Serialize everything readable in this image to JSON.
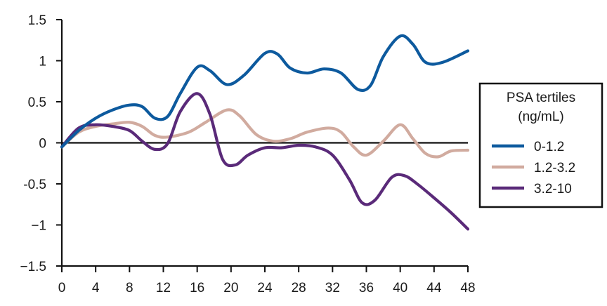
{
  "chart_data": {
    "type": "line",
    "title": "",
    "xlabel": "",
    "ylabel": "",
    "xlim": [
      0,
      48
    ],
    "ylim": [
      -1.5,
      1.5
    ],
    "x_ticks": [
      0,
      4,
      8,
      12,
      16,
      20,
      24,
      28,
      32,
      36,
      40,
      44,
      48
    ],
    "x_tick_labels": [
      "0",
      "4",
      "8",
      "12",
      "16",
      "20",
      "24",
      "28",
      "32",
      "36",
      "40",
      "44",
      "48"
    ],
    "y_ticks": [
      1.5,
      1,
      0.5,
      0,
      -0.5,
      -1,
      -1.5
    ],
    "y_tick_labels": [
      "1.5",
      "1",
      "0.5",
      "0",
      "-0.5",
      "−1",
      "−1.5"
    ],
    "grid": false,
    "zero_line": true,
    "legend": {
      "placement": "right",
      "title_line1": "PSA tertiles",
      "title_line2": "(ng/mL)"
    },
    "series": [
      {
        "name": "0-1.2",
        "color": "#0d5a9e",
        "x": [
          0,
          2,
          4,
          6,
          8,
          9.5,
          11,
          12.5,
          14,
          16,
          17.5,
          19.5,
          21.5,
          24,
          25.5,
          27,
          29,
          31,
          33,
          35,
          36.5,
          38,
          40,
          41.5,
          43,
          45,
          48
        ],
        "y": [
          -0.05,
          0.15,
          0.3,
          0.4,
          0.46,
          0.44,
          0.3,
          0.32,
          0.6,
          0.92,
          0.88,
          0.71,
          0.82,
          1.09,
          1.08,
          0.91,
          0.85,
          0.9,
          0.85,
          0.65,
          0.7,
          1.05,
          1.3,
          1.2,
          0.98,
          0.98,
          1.12
        ]
      },
      {
        "name": "1.2-3.2",
        "color": "#d1ab9f",
        "x": [
          0,
          2,
          4,
          6,
          8,
          9.5,
          11,
          12.5,
          15,
          17,
          19.5,
          21,
          23,
          25,
          27,
          29,
          31.5,
          33,
          34.5,
          36,
          38,
          40,
          41.5,
          43,
          44.5,
          46,
          48
        ],
        "y": [
          -0.05,
          0.13,
          0.2,
          0.23,
          0.25,
          0.2,
          0.09,
          0.07,
          0.13,
          0.25,
          0.4,
          0.33,
          0.1,
          0.02,
          0.05,
          0.13,
          0.18,
          0.13,
          -0.05,
          -0.15,
          0.02,
          0.22,
          0.05,
          -0.13,
          -0.17,
          -0.1,
          -0.09
        ]
      },
      {
        "name": "3.2-10",
        "color": "#5a2a79",
        "x": [
          0,
          2,
          4,
          6,
          8,
          9.5,
          11,
          12.5,
          14,
          16,
          17.5,
          19,
          20.5,
          22,
          24,
          26,
          28,
          30,
          32,
          34,
          35.5,
          37,
          39,
          40.5,
          42,
          44,
          46,
          48
        ],
        "y": [
          -0.05,
          0.18,
          0.22,
          0.2,
          0.15,
          0.02,
          -0.08,
          -0.01,
          0.38,
          0.6,
          0.35,
          -0.2,
          -0.27,
          -0.15,
          -0.06,
          -0.06,
          -0.03,
          -0.05,
          -0.15,
          -0.45,
          -0.73,
          -0.7,
          -0.42,
          -0.4,
          -0.5,
          -0.67,
          -0.85,
          -1.05
        ]
      }
    ]
  }
}
